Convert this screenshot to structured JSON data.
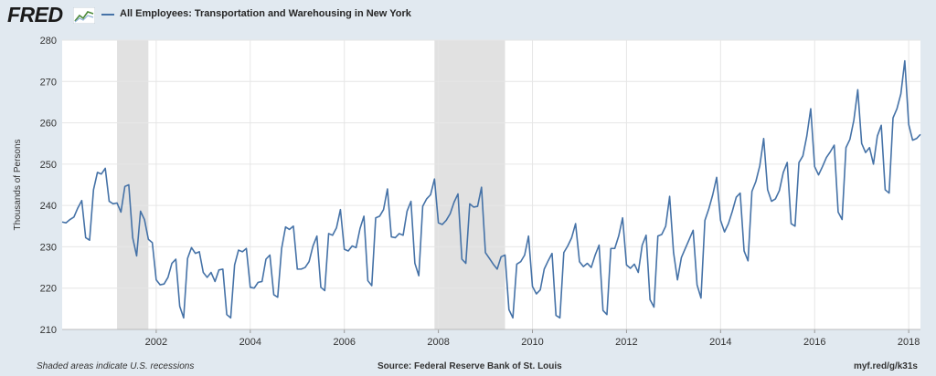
{
  "header": {
    "brand": "FRED",
    "title": "All Employees: Transportation and Warehousing in New York"
  },
  "footer": {
    "note": "Shaded areas indicate U.S. recessions",
    "source": "Source: Federal Reserve Bank of St. Louis",
    "link": "myf.red/g/k31s"
  },
  "colors": {
    "line": "#4572a7",
    "recession": "#e1e1e1",
    "frame": "#e1e9f0",
    "plot_bg": "#ffffff",
    "grid": "#e6e6e6"
  },
  "chart_data": {
    "type": "line",
    "title": "All Employees: Transportation and Warehousing in New York",
    "ylabel": "Thousands of Persons",
    "xlabel": "",
    "ylim": [
      210,
      280
    ],
    "yticks": [
      210,
      220,
      230,
      240,
      250,
      260,
      270,
      280
    ],
    "xlim": [
      2000.0,
      2018.25
    ],
    "xticks": [
      {
        "year": 2002,
        "label": "2002"
      },
      {
        "year": 2004,
        "label": "2004"
      },
      {
        "year": 2006,
        "label": "2006"
      },
      {
        "year": 2008,
        "label": "2008"
      },
      {
        "year": 2010,
        "label": "2010"
      },
      {
        "year": 2012,
        "label": "2012"
      },
      {
        "year": 2014,
        "label": "2014"
      },
      {
        "year": 2016,
        "label": "2016"
      },
      {
        "year": 2018,
        "label": "2018"
      }
    ],
    "recessions": [
      {
        "start": "2001-03",
        "end": "2001-11"
      },
      {
        "start": "2007-12",
        "end": "2009-06"
      }
    ],
    "grid": true,
    "legend": "top-left",
    "series": [
      {
        "start": "2000-01",
        "frequency": "monthly",
        "values": [
          236.0,
          235.8,
          236.6,
          237.2,
          239.4,
          241.2,
          232.2,
          231.6,
          243.8,
          248.0,
          247.6,
          249.0,
          241.0,
          240.4,
          240.6,
          238.4,
          244.6,
          245.0,
          232.2,
          227.8,
          238.6,
          236.6,
          231.8,
          231.0,
          222.0,
          220.8,
          221.0,
          222.6,
          226.0,
          227.0,
          215.6,
          212.8,
          227.2,
          229.8,
          228.4,
          228.8,
          223.8,
          222.6,
          223.8,
          221.6,
          224.4,
          224.6,
          213.6,
          212.8,
          225.6,
          229.2,
          228.8,
          229.6,
          220.2,
          220.0,
          221.4,
          221.6,
          227.0,
          228.0,
          218.4,
          217.8,
          229.6,
          234.8,
          234.2,
          235.0,
          224.6,
          224.6,
          225.0,
          226.4,
          230.2,
          232.6,
          220.2,
          219.4,
          233.2,
          232.8,
          234.6,
          239.0,
          229.4,
          229.0,
          230.2,
          229.8,
          234.4,
          237.4,
          221.8,
          220.6,
          237.0,
          237.4,
          239.0,
          244.0,
          232.4,
          232.2,
          233.2,
          232.8,
          238.6,
          241.0,
          226.0,
          223.0,
          239.8,
          241.6,
          242.6,
          246.4,
          235.8,
          235.4,
          236.4,
          238.0,
          240.8,
          242.8,
          227.0,
          226.0,
          240.4,
          239.6,
          239.8,
          244.4,
          228.6,
          227.2,
          225.8,
          224.6,
          227.6,
          228.0,
          214.8,
          212.8,
          225.8,
          226.4,
          228.0,
          232.6,
          220.4,
          218.6,
          219.6,
          224.6,
          226.6,
          228.4,
          213.4,
          212.8,
          228.6,
          230.2,
          232.2,
          235.6,
          226.4,
          225.2,
          226.0,
          225.0,
          228.0,
          230.4,
          214.6,
          213.6,
          229.6,
          229.6,
          232.6,
          237.0,
          225.6,
          224.8,
          225.8,
          223.8,
          230.4,
          232.8,
          217.2,
          215.4,
          232.6,
          233.0,
          235.0,
          242.2,
          228.6,
          222.0,
          227.4,
          229.6,
          231.8,
          234.0,
          220.8,
          217.6,
          236.4,
          239.2,
          242.6,
          246.8,
          236.4,
          233.6,
          235.6,
          238.6,
          242.0,
          243.0,
          229.0,
          226.6,
          243.4,
          245.8,
          249.6,
          256.2,
          243.8,
          241.0,
          241.6,
          243.6,
          248.0,
          250.4,
          235.6,
          235.0,
          250.4,
          252.0,
          256.8,
          263.4,
          249.4,
          247.4,
          249.4,
          251.6,
          253.0,
          254.6,
          238.4,
          236.6,
          254.0,
          256.0,
          260.6,
          268.0,
          255.0,
          252.8,
          254.0,
          250.0,
          256.8,
          259.4,
          243.8,
          243.0,
          261.2,
          263.4,
          267.0,
          275.0,
          259.6,
          255.8,
          256.2,
          257.2
        ]
      }
    ]
  }
}
